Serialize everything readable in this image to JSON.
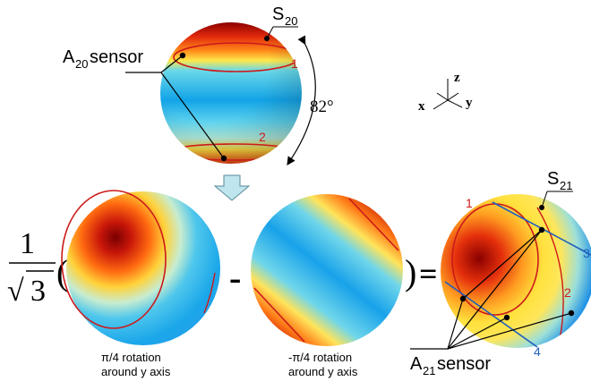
{
  "top": {
    "s_label": "S",
    "s_sub": "20",
    "a_label": "A",
    "a_sub": "20",
    "a_suffix": " sensor",
    "ring1": "1",
    "ring2": "2",
    "angle": "82°"
  },
  "axes": {
    "x": "x",
    "y": "y",
    "z": "z"
  },
  "equation": {
    "numerator": "1",
    "root_symbol": "√",
    "radicand": "3",
    "open_paren": "(",
    "minus": "-",
    "close_paren": ")",
    "equals": "="
  },
  "sphere_left": {
    "caption_line1": "π/4 rotation",
    "caption_line2": "around y axis"
  },
  "sphere_middle": {
    "caption_line1": "-π/4 rotation",
    "caption_line2": "around y axis"
  },
  "sphere_right": {
    "s_label": "S",
    "s_sub": "21",
    "a_label": "A",
    "a_sub": "21",
    "a_suffix": " sensor",
    "ring1": "1",
    "ring2": "2",
    "ring3": "3",
    "ring4": "4"
  },
  "colors": {
    "red_line": "#cc1a1a",
    "blue_line": "#1f5fbf",
    "arrow_fill": "#bfe6ee"
  }
}
